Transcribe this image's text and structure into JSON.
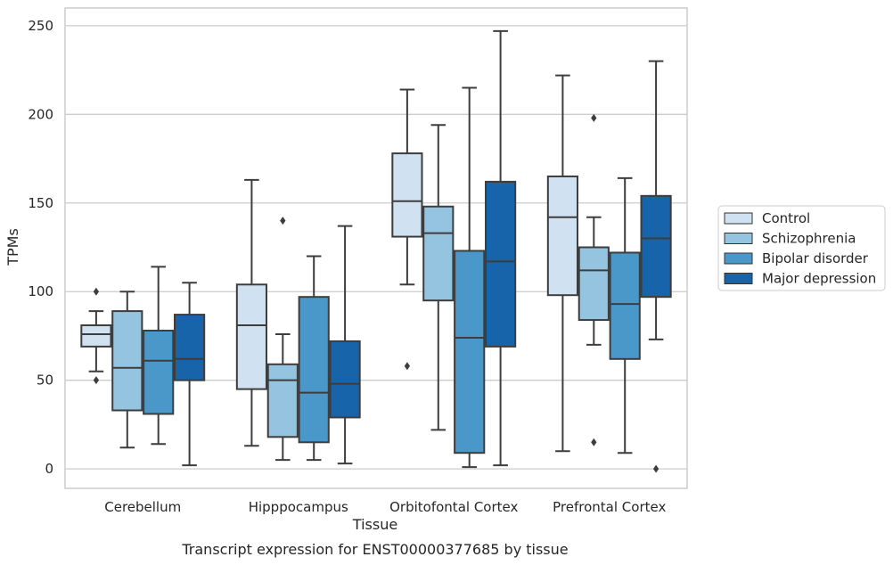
{
  "caption": "Transcript expression for ENST00000377685 by tissue",
  "chart_data": {
    "type": "box",
    "xlabel": "Tissue",
    "ylabel": "TPMs",
    "ylim": [
      -11,
      260
    ],
    "yticks": [
      0,
      50,
      100,
      150,
      200,
      250
    ],
    "grid": "horizontal",
    "legend_position": "right",
    "categories": [
      "Cerebellum",
      "Hipppocampus",
      "Orbitofontal Cortex",
      "Prefrontal Cortex"
    ],
    "series": [
      {
        "name": "Control",
        "color": "#d0e1f2",
        "boxes": [
          {
            "whisker_low": 55,
            "q1": 69,
            "median": 76,
            "q3": 81,
            "whisker_high": 89,
            "outliers": [
              100,
              50
            ]
          },
          {
            "whisker_low": 13,
            "q1": 45,
            "median": 81,
            "q3": 104,
            "whisker_high": 163,
            "outliers": []
          },
          {
            "whisker_low": 104,
            "q1": 131,
            "median": 151,
            "q3": 178,
            "whisker_high": 214,
            "outliers": [
              58
            ]
          },
          {
            "whisker_low": 10,
            "q1": 98,
            "median": 142,
            "q3": 165,
            "whisker_high": 222,
            "outliers": []
          }
        ]
      },
      {
        "name": "Schizophrenia",
        "color": "#94c4df",
        "boxes": [
          {
            "whisker_low": 12,
            "q1": 33,
            "median": 57,
            "q3": 89,
            "whisker_high": 100,
            "outliers": []
          },
          {
            "whisker_low": 5,
            "q1": 18,
            "median": 50,
            "q3": 59,
            "whisker_high": 76,
            "outliers": [
              140
            ]
          },
          {
            "whisker_low": 22,
            "q1": 95,
            "median": 133,
            "q3": 148,
            "whisker_high": 194,
            "outliers": []
          },
          {
            "whisker_low": 70,
            "q1": 84,
            "median": 112,
            "q3": 125,
            "whisker_high": 142,
            "outliers": [
              198,
              15
            ]
          }
        ]
      },
      {
        "name": "Bipolar disorder",
        "color": "#4a98c9",
        "boxes": [
          {
            "whisker_low": 14,
            "q1": 31,
            "median": 61,
            "q3": 78,
            "whisker_high": 114,
            "outliers": []
          },
          {
            "whisker_low": 5,
            "q1": 15,
            "median": 43,
            "q3": 97,
            "whisker_high": 120,
            "outliers": []
          },
          {
            "whisker_low": 1,
            "q1": 9,
            "median": 74,
            "q3": 123,
            "whisker_high": 215,
            "outliers": []
          },
          {
            "whisker_low": 9,
            "q1": 62,
            "median": 93,
            "q3": 122,
            "whisker_high": 164,
            "outliers": []
          }
        ]
      },
      {
        "name": "Major depression",
        "color": "#1764ab",
        "boxes": [
          {
            "whisker_low": 2,
            "q1": 50,
            "median": 62,
            "q3": 87,
            "whisker_high": 105,
            "outliers": []
          },
          {
            "whisker_low": 3,
            "q1": 29,
            "median": 48,
            "q3": 72,
            "whisker_high": 137,
            "outliers": []
          },
          {
            "whisker_low": 2,
            "q1": 69,
            "median": 117,
            "q3": 162,
            "whisker_high": 247,
            "outliers": []
          },
          {
            "whisker_low": 73,
            "q1": 97,
            "median": 130,
            "q3": 154,
            "whisker_high": 230,
            "outliers": [
              0
            ]
          }
        ]
      }
    ]
  }
}
